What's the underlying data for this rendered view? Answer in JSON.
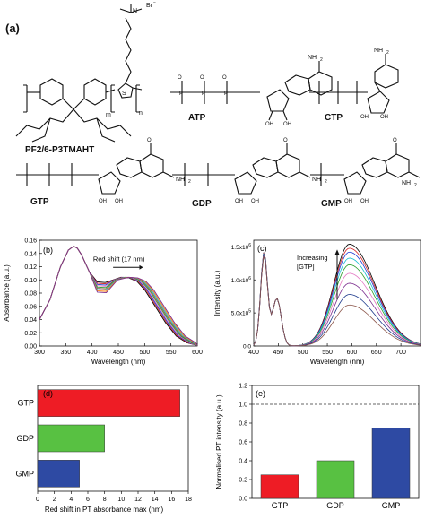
{
  "panel_a": {
    "label": "(a)",
    "polymer": {
      "name": "PF2/6-P3TMAHT",
      "counterion": "Br",
      "counterion_sup": "−",
      "sub_m": "m",
      "sub_n": "n",
      "s_atom": "S",
      "n_plus": "N"
    },
    "molecules": [
      {
        "name": "ATP",
        "base_n": "NH",
        "base_n_sub": "2"
      },
      {
        "name": "CTP",
        "base_n": "NH",
        "base_n_sub": "2"
      },
      {
        "name": "GTP",
        "base_n": "NH",
        "base_n_sub": "2"
      },
      {
        "name": "GDP",
        "base_n": "NH",
        "base_n_sub": "2"
      },
      {
        "name": "GMP",
        "base_n": "NH",
        "base_n_sub": "2"
      }
    ],
    "atom_o": "O",
    "atom_p": "P",
    "atom_n": "N",
    "atom_oh": "OH",
    "atom_nh": "NH"
  },
  "chart_data": [
    {
      "panel": "(b)",
      "type": "line",
      "xlabel": "Wavelength (nm)",
      "ylabel": "Absorbance (a.u.)",
      "xlim": [
        300,
        600
      ],
      "ylim": [
        0.0,
        0.16
      ],
      "xticks": [
        300,
        350,
        400,
        450,
        500,
        550,
        600
      ],
      "yticks": [
        0.0,
        0.02,
        0.04,
        0.06,
        0.08,
        0.1,
        0.12,
        0.14,
        0.16
      ],
      "annotation": "Red shift (17 nm)",
      "series_colors": [
        "#000000",
        "#d62728",
        "#1f3bd6",
        "#e377c2",
        "#2ca02c",
        "#8c564b",
        "#17becf",
        "#ff7f0e",
        "#7b2d8e"
      ],
      "x": [
        300,
        320,
        340,
        355,
        365,
        372,
        380,
        395,
        410,
        425,
        440,
        455,
        470,
        485,
        500,
        520,
        540,
        560,
        580,
        600
      ],
      "base": [
        0.04,
        0.07,
        0.12,
        0.145,
        0.151,
        0.148,
        0.138,
        0.112,
        0.097,
        0.096,
        0.1,
        0.104,
        0.103,
        0.098,
        0.085,
        0.06,
        0.035,
        0.015,
        0.005,
        0.001
      ],
      "shift_nm": 17
    },
    {
      "panel": "(c)",
      "type": "line",
      "xlabel": "Wavelength (nm)",
      "ylabel": "Intensity (a.u.)",
      "xlim": [
        400,
        740
      ],
      "ylim": [
        0,
        1600000
      ],
      "xticks": [
        400,
        450,
        500,
        550,
        600,
        650,
        700
      ],
      "ytick_labels": [
        {
          "value": 0,
          "mant": "0.0",
          "exp": ""
        },
        {
          "value": 500000,
          "mant": "5.0x10",
          "exp": "5"
        },
        {
          "value": 1000000,
          "mant": "1.0x10",
          "exp": "6"
        },
        {
          "value": 1500000,
          "mant": "1.5x10",
          "exp": "6"
        }
      ],
      "annotation": "Increasing [GTP]",
      "annotation_lines": [
        "Increasing",
        "[GTP]"
      ],
      "series_peak_values": [
        1540000,
        1480000,
        1420000,
        1330000,
        1230000,
        1100000,
        950000,
        780000,
        620000
      ],
      "series_colors": [
        "#000000",
        "#d62728",
        "#1f3bd6",
        "#17becf",
        "#2ca02c",
        "#e377c2",
        "#7b2d8e",
        "#1f3b8c",
        "#8c564b"
      ]
    },
    {
      "panel": "(d)",
      "type": "bar",
      "orientation": "horizontal",
      "categories": [
        "GTP",
        "GDP",
        "GMP"
      ],
      "values": [
        17,
        8,
        5
      ],
      "colors": [
        "#ee1c25",
        "#58c142",
        "#2e4aa3"
      ],
      "xlabel": "Red shift in PT absorbance max (nm)",
      "xlim": [
        0,
        18
      ],
      "xticks": [
        0,
        2,
        4,
        6,
        8,
        10,
        12,
        14,
        16,
        18
      ]
    },
    {
      "panel": "(e)",
      "type": "bar",
      "categories": [
        "GTP",
        "GDP",
        "GMP"
      ],
      "values": [
        0.25,
        0.4,
        0.75
      ],
      "colors": [
        "#ee1c25",
        "#58c142",
        "#2e4aa3"
      ],
      "ylabel": "Normalised PT intensity (a.u.)",
      "ylim": [
        0.0,
        1.2
      ],
      "yticks": [
        0.0,
        0.2,
        0.4,
        0.6,
        0.8,
        1.0,
        1.2
      ],
      "reference_line": 1.0
    }
  ]
}
